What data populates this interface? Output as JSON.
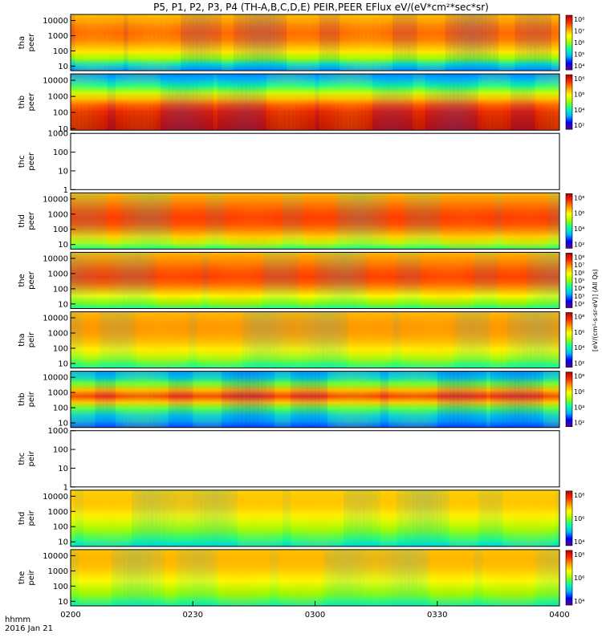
{
  "chart_data": {
    "type": "heatmap",
    "title": "P5, P1, P2, P3, P4 (TH-A,B,C,D,E) PEIR,PEER EFlux eV/(eV*cm²*sec*sr)",
    "time_axis": {
      "start": "0200",
      "end": "0400",
      "ticks": [
        "0200",
        "0230",
        "0300",
        "0330",
        "0400"
      ],
      "label_line1": "hhmm",
      "label_line2": "2016 Jan 21"
    },
    "colorscale": [
      "#5a008c",
      "#0000ff",
      "#00b4ff",
      "#00ffaa",
      "#96ff00",
      "#ffff00",
      "#ffa000",
      "#ff2800",
      "#b40000"
    ],
    "colorbar_unit": "[eV/(cm²-s-sr-eV)]",
    "colorbar_unit_alt": "(All Qs)",
    "panels": [
      {
        "id": "tha-peer",
        "label": "tha\npeer",
        "yticks": [
          "10",
          "100",
          "1000",
          "10000"
        ],
        "ymin": 5,
        "ymax": 25000,
        "cb": [
          "10⁸",
          "10⁷",
          "10⁶",
          "10⁵",
          "10⁴"
        ],
        "has_data": true,
        "profile": [
          0.22,
          0.32,
          0.5,
          0.66,
          0.74,
          0.8,
          0.82,
          0.8,
          0.76,
          0.72
        ],
        "base": 0.28
      },
      {
        "id": "thb-peer",
        "label": "thb\npeer",
        "yticks": [
          "10",
          "100",
          "1000",
          "10000"
        ],
        "ymin": 8,
        "ymax": 25000,
        "cb": [
          "10⁸",
          "10⁶",
          "10⁴",
          "10²"
        ],
        "has_data": true,
        "profile": [
          0.98,
          0.97,
          0.95,
          0.92,
          0.84,
          0.72,
          0.55,
          0.4,
          0.28,
          0.22
        ],
        "base": 0.3
      },
      {
        "id": "thc-peer",
        "label": "thc\npeer",
        "yticks": [
          "1",
          "10",
          "100",
          "1000"
        ],
        "ymin": 1,
        "ymax": 1000,
        "cb": [],
        "has_data": false
      },
      {
        "id": "thd-peer",
        "label": "thd\npeer",
        "yticks": [
          "10",
          "100",
          "1000",
          "10000"
        ],
        "ymin": 5,
        "ymax": 25000,
        "cb": [
          "10⁸",
          "10⁶",
          "10⁴",
          "10²"
        ],
        "has_data": true,
        "profile": [
          0.4,
          0.55,
          0.68,
          0.78,
          0.84,
          0.86,
          0.84,
          0.8,
          0.76,
          0.72
        ],
        "base": 0.42
      },
      {
        "id": "the-peer",
        "label": "the\npeer",
        "yticks": [
          "10",
          "100",
          "1000",
          "10000"
        ],
        "ymin": 5,
        "ymax": 25000,
        "cb": [
          "10⁸",
          "10⁷",
          "10⁶",
          "10⁵",
          "10⁴",
          "10³",
          "10²"
        ],
        "has_data": true,
        "profile": [
          0.4,
          0.5,
          0.62,
          0.74,
          0.82,
          0.86,
          0.84,
          0.8,
          0.76,
          0.72
        ],
        "base": 0.4
      },
      {
        "id": "tha-peir",
        "label": "tha\npeir",
        "yticks": [
          "10",
          "100",
          "1000",
          "10000"
        ],
        "ymin": 5,
        "ymax": 25000,
        "cb": [
          "10⁸",
          "10⁶",
          "10⁴",
          "10²"
        ],
        "has_data": true,
        "profile": [
          0.38,
          0.46,
          0.56,
          0.64,
          0.7,
          0.74,
          0.76,
          0.76,
          0.74,
          0.72
        ],
        "base": 0.36
      },
      {
        "id": "thb-peir",
        "label": "thb\npeir",
        "yticks": [
          "10",
          "100",
          "1000",
          "10000"
        ],
        "ymin": 5,
        "ymax": 25000,
        "cb": [
          "10⁸",
          "10⁶",
          "10⁴",
          "10²"
        ],
        "has_data": true,
        "profile": [
          0.18,
          0.24,
          0.3,
          0.44,
          0.7,
          0.86,
          0.72,
          0.46,
          0.3,
          0.24
        ],
        "base": 0.2
      },
      {
        "id": "thc-peir",
        "label": "thc\npeir",
        "yticks": [
          "1",
          "10",
          "100",
          "1000"
        ],
        "ymin": 1,
        "ymax": 1000,
        "cb": [],
        "has_data": false
      },
      {
        "id": "thd-peir",
        "label": "thd\npeir",
        "yticks": [
          "10",
          "100",
          "1000",
          "10000"
        ],
        "ymin": 5,
        "ymax": 25000,
        "cb": [
          "10⁸",
          "10⁶",
          "10⁴"
        ],
        "has_data": true,
        "profile": [
          0.32,
          0.4,
          0.46,
          0.52,
          0.58,
          0.64,
          0.68,
          0.7,
          0.7,
          0.68
        ],
        "base": 0.34
      },
      {
        "id": "the-peir",
        "label": "the\npeir",
        "yticks": [
          "10",
          "100",
          "1000",
          "10000"
        ],
        "ymin": 5,
        "ymax": 25000,
        "cb": [
          "10⁸",
          "10⁶",
          "10⁴"
        ],
        "has_data": true,
        "profile": [
          0.36,
          0.44,
          0.5,
          0.56,
          0.62,
          0.66,
          0.7,
          0.72,
          0.72,
          0.7
        ],
        "base": 0.36
      }
    ]
  }
}
